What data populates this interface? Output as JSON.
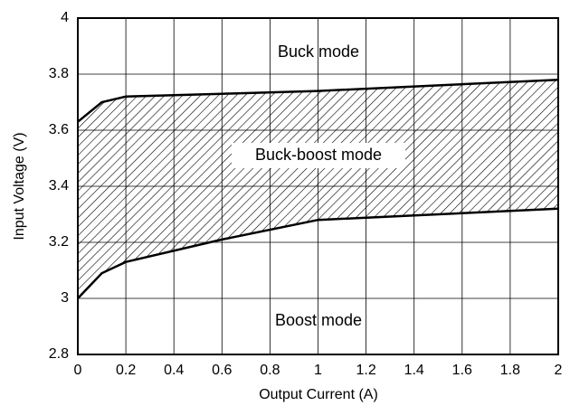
{
  "chart_data": {
    "type": "range-area",
    "x": [
      0,
      0.1,
      0.2,
      0.6,
      1,
      2
    ],
    "upper": [
      3.63,
      3.7,
      3.72,
      3.73,
      3.74,
      3.78
    ],
    "lower": [
      3.0,
      3.09,
      3.13,
      3.21,
      3.28,
      3.32
    ],
    "color": "#000000",
    "xlim": [
      0,
      2
    ],
    "xticks": [
      0,
      0.2,
      0.4,
      0.6,
      0.8,
      1,
      1.2,
      1.4,
      1.6,
      1.8,
      2
    ],
    "ylim": [
      2.8,
      4
    ],
    "yticks": [
      2.8,
      3,
      3.2,
      3.4,
      3.6,
      3.8,
      4
    ],
    "grid": true,
    "x_label": "Output Current (A)",
    "y_label": "Input Voltage (V)",
    "annotations": [
      "Buck mode",
      "Buck-boost mode",
      "Boost mode"
    ]
  }
}
